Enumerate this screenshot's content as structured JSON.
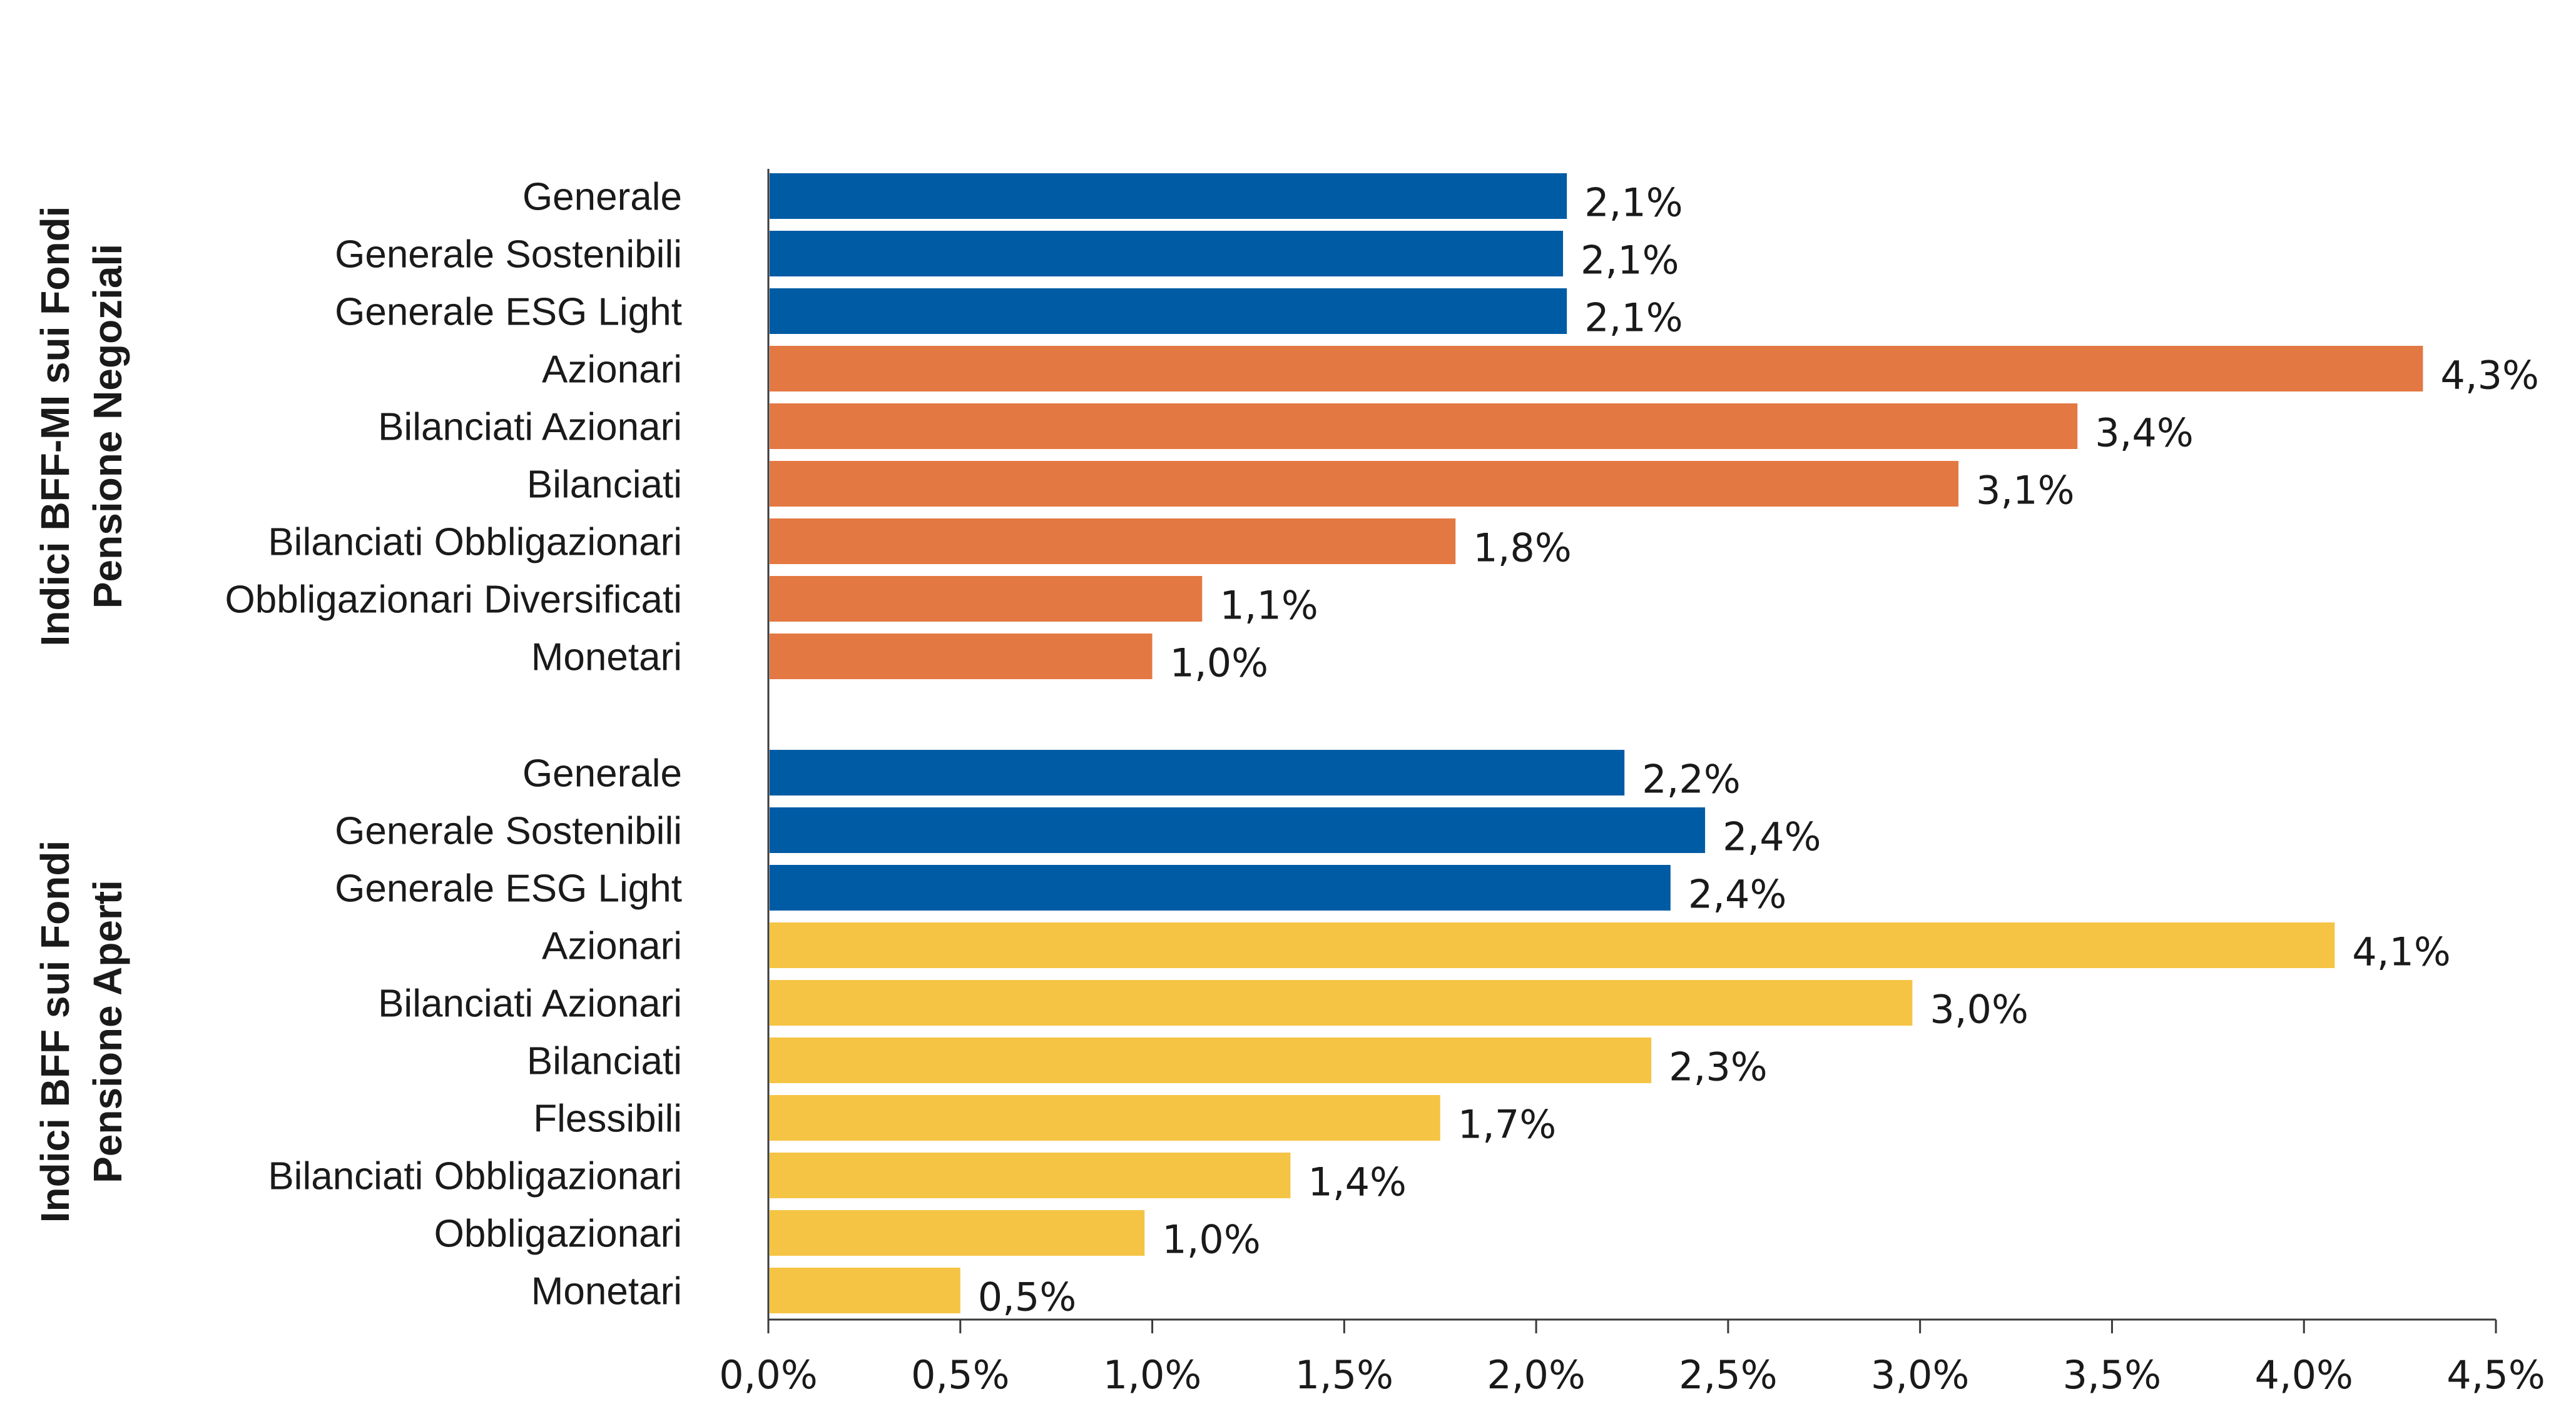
{
  "colors": {
    "generale": "#005BA5",
    "negoziali": "#E37843",
    "aperti": "#F5C444"
  },
  "chart_data": {
    "type": "bar",
    "orientation": "horizontal",
    "x_ticks": [
      "0,0%",
      "0,5%",
      "1,0%",
      "1,5%",
      "2,0%",
      "2,5%",
      "3,0%",
      "3,5%",
      "4,0%",
      "4,5%"
    ],
    "xlim": [
      0,
      4.5
    ],
    "grid": false,
    "groups": [
      {
        "name_lines": [
          "Indici BFF-MI sui Fondi",
          "Pensione Negoziali"
        ],
        "bars": [
          {
            "category": "Generale",
            "value": 2.08,
            "label": "2,1%",
            "color": "generale"
          },
          {
            "category": "Generale Sostenibili",
            "value": 2.07,
            "label": "2,1%",
            "color": "generale"
          },
          {
            "category": "Generale ESG Light",
            "value": 2.08,
            "label": "2,1%",
            "color": "generale"
          },
          {
            "category": "Azionari",
            "value": 4.31,
            "label": "4,3%",
            "color": "negoziali"
          },
          {
            "category": "Bilanciati Azionari",
            "value": 3.41,
            "label": "3,4%",
            "color": "negoziali"
          },
          {
            "category": "Bilanciati",
            "value": 3.1,
            "label": "3,1%",
            "color": "negoziali"
          },
          {
            "category": "Bilanciati Obbligazionari",
            "value": 1.79,
            "label": "1,8%",
            "color": "negoziali"
          },
          {
            "category": "Obbligazionari Diversificati",
            "value": 1.13,
            "label": "1,1%",
            "color": "negoziali"
          },
          {
            "category": "Monetari",
            "value": 1.0,
            "label": "1,0%",
            "color": "negoziali"
          }
        ]
      },
      {
        "name_lines": [
          "Indici BFF sui Fondi",
          "Pensione Aperti"
        ],
        "bars": [
          {
            "category": "Generale",
            "value": 2.23,
            "label": "2,2%",
            "color": "generale"
          },
          {
            "category": "Generale Sostenibili",
            "value": 2.44,
            "label": "2,4%",
            "color": "generale"
          },
          {
            "category": "Generale ESG Light",
            "value": 2.35,
            "label": "2,4%",
            "color": "generale"
          },
          {
            "category": "Azionari",
            "value": 4.08,
            "label": "4,1%",
            "color": "aperti"
          },
          {
            "category": "Bilanciati Azionari",
            "value": 2.98,
            "label": "3,0%",
            "color": "aperti"
          },
          {
            "category": "Bilanciati",
            "value": 2.3,
            "label": "2,3%",
            "color": "aperti"
          },
          {
            "category": "Flessibili",
            "value": 1.75,
            "label": "1,7%",
            "color": "aperti"
          },
          {
            "category": "Bilanciati Obbligazionari",
            "value": 1.36,
            "label": "1,4%",
            "color": "aperti"
          },
          {
            "category": "Obbligazionari",
            "value": 0.98,
            "label": "1,0%",
            "color": "aperti"
          },
          {
            "category": "Monetari",
            "value": 0.5,
            "label": "0,5%",
            "color": "aperti"
          }
        ]
      }
    ]
  }
}
